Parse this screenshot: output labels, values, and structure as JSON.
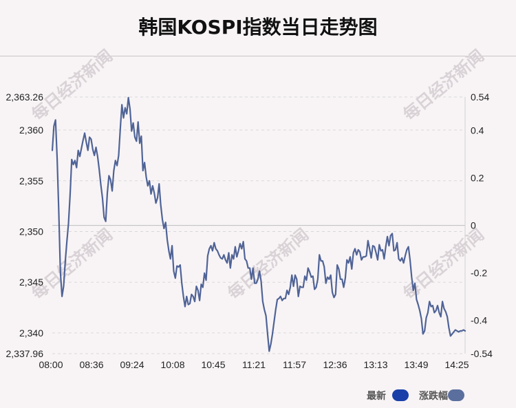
{
  "header": {
    "title": "韩国KOSPI指数当日走势图"
  },
  "watermark": {
    "text": "每日经济新闻"
  },
  "legend": {
    "items": [
      {
        "label": "最新",
        "color": "#1a3fa8"
      },
      {
        "label": "涨跌幅",
        "color": "#5b6f9e"
      }
    ]
  },
  "chart_data": {
    "type": "line",
    "title": "韩国KOSPI指数当日走势图",
    "xlabel": "",
    "ylabel": "",
    "x_ticks": [
      "08:00",
      "08:36",
      "09:24",
      "10:08",
      "10:45",
      "11:21",
      "11:57",
      "12:36",
      "13:13",
      "13:49",
      "14:25"
    ],
    "y_left_ticks": [
      "2,363.26",
      "2,360",
      "2,355",
      "2,350",
      "2,345",
      "2,340",
      "2,337.96"
    ],
    "y_right_ticks": [
      "0.54",
      "0.4",
      "0.2",
      "0",
      "-0.2",
      "-0.4",
      "-0.54"
    ],
    "ylim": [
      2337.96,
      2363.26
    ],
    "y2lim": [
      -0.54,
      0.54
    ],
    "baseline": 2350.6,
    "grid": true,
    "legend_position": "bottom-right",
    "line_color": "#4f6396",
    "series": [
      {
        "name": "最新",
        "values": [
          2358,
          2360.4,
          2361,
          2357.2,
          2352,
          2346,
          2343.6,
          2344.6,
          2347,
          2349,
          2350.8,
          2353.6,
          2357.1,
          2356.6,
          2357,
          2356.3,
          2358,
          2357.4,
          2358.2,
          2359,
          2359.7,
          2358.8,
          2358,
          2359.3,
          2359.1,
          2358.1,
          2357.5,
          2358.3,
          2357.4,
          2356.1,
          2354.6,
          2353.3,
          2351.4,
          2351,
          2353.8,
          2355.5,
          2355.1,
          2354,
          2356,
          2357,
          2356.5,
          2357.5,
          2360.1,
          2362.5,
          2361.2,
          2362.2,
          2361.6,
          2363.2,
          2362.1,
          2359.9,
          2360.7,
          2359.3,
          2358.9,
          2360.8,
          2358.7,
          2359.4,
          2356,
          2356.8,
          2355.4,
          2354.5,
          2355,
          2353.7,
          2354.5,
          2353.8,
          2352.8,
          2353.3,
          2354.7,
          2352.6,
          2351.2,
          2350.3,
          2350.9,
          2349.2,
          2348.1,
          2347.3,
          2348.6,
          2346.1,
          2345.4,
          2346.6,
          2346.5,
          2346.7,
          2344.9,
          2343.6,
          2342.6,
          2343.6,
          2342.8,
          2342.9,
          2343.8,
          2343.6,
          2343.1,
          2344.6,
          2344.2,
          2343.2,
          2344.8,
          2344.5,
          2345.9,
          2345.2,
          2347.6,
          2348.3,
          2348.6,
          2348.1,
          2348.9,
          2348.3,
          2348.1,
          2347.7,
          2347.4,
          2347.3,
          2347.7,
          2347.2,
          2346.9,
          2347.9,
          2346.4,
          2347.7,
          2347.3,
          2348.5,
          2347.5,
          2348.1,
          2348.8,
          2348.3,
          2349,
          2347.3,
          2347.1,
          2346.4,
          2346.4,
          2345.3,
          2346.4,
          2344.9,
          2344.9,
          2345.3,
          2346.1,
          2345.1,
          2343.1,
          2342.3,
          2341.7,
          2339.9,
          2338.2,
          2338.9,
          2339.9,
          2341.1,
          2342.3,
          2343.3,
          2343.4,
          2343.6,
          2343.2,
          2343.4,
          2343.4,
          2344.2,
          2343.8,
          2344.5,
          2345.7,
          2344.6,
          2345.7,
          2345.3,
          2343.6,
          2344.6,
          2344.5,
          2344.5,
          2345.6,
          2345.2,
          2346.4,
          2346,
          2345.5,
          2345.6,
          2344.3,
          2344.5,
          2345.3,
          2347.7,
          2347.1,
          2347.1,
          2346.5,
          2344.9,
          2345.5,
          2345.3,
          2345.7,
          2344,
          2343.5,
          2343.8,
          2346.7,
          2346.3,
          2345.3,
          2345.3,
          2344.5,
          2345.4,
          2347.2,
          2346.9,
          2347.5,
          2346.3,
          2347.9,
          2348.3,
          2347.7,
          2348.2,
          2348,
          2347.2,
          2347.5,
          2347.5,
          2347.6,
          2349.1,
          2348.3,
          2347.4,
          2348.6,
          2348.5,
          2347.9,
          2347.2,
          2348.7,
          2348.1,
          2348.2,
          2347.3,
          2348.5,
          2349.5,
          2348.6,
          2349.6,
          2349.8,
          2348.1,
          2348.2,
          2348.9,
          2347.3,
          2347.1,
          2347.4,
          2346.9,
          2347.6,
          2348.2,
          2348.5,
          2347.2,
          2345.5,
          2344.2,
          2344.9,
          2343.3,
          2342.8,
          2342.2,
          2341.4,
          2339.9,
          2340.2,
          2341.5,
          2342,
          2343.1,
          2342.6,
          2342.7,
          2342,
          2342.2,
          2342.7,
          2342,
          2341.6,
          2343.1,
          2342.4,
          2342.1,
          2341.6,
          2340.5,
          2339.7,
          2339.9,
          2340.1,
          2340.3,
          2340.2,
          2340.1,
          2340.2,
          2340.2,
          2340.3,
          2340.2
        ]
      }
    ]
  }
}
